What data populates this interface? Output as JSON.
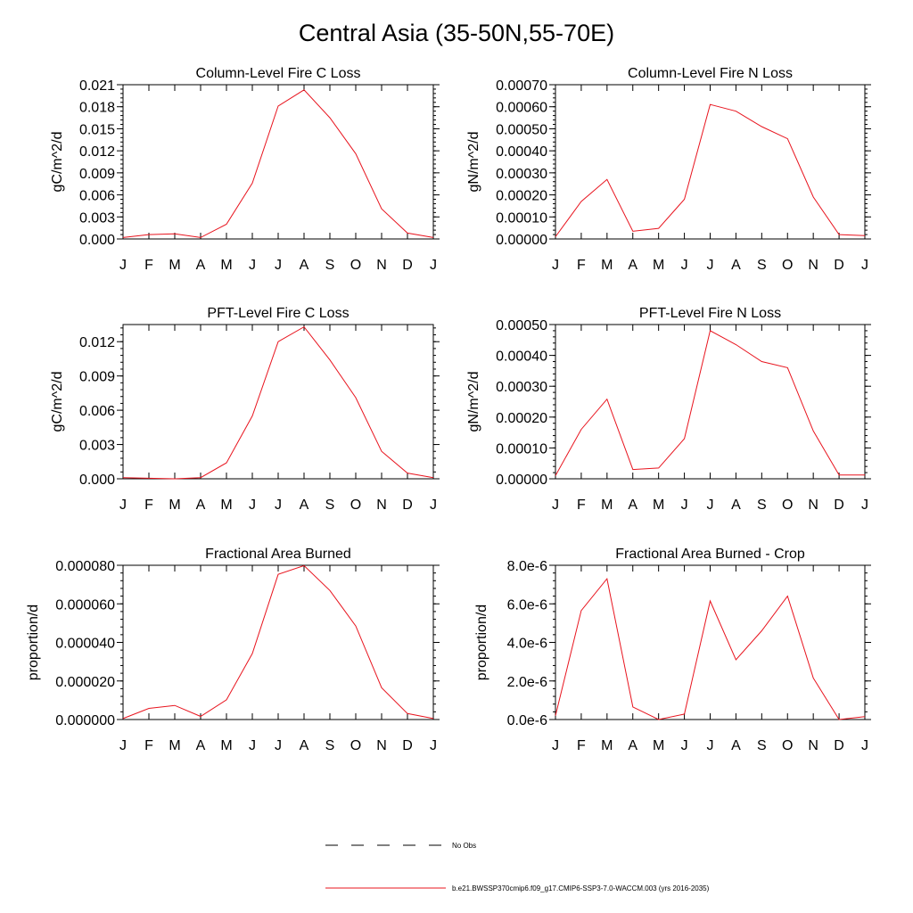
{
  "page_title": "Central Asia (35-50N,55-70E)",
  "legend": {
    "obs_label": "No Obs",
    "model_label": "b.e21.BWSSP370cmip6.f09_g17.CMIP6-SSP3-7.0-WACCM.003 (yrs 2016-2035)",
    "model_color": "#e8141e",
    "obs_color": "#000000"
  },
  "chart_data": [
    {
      "type": "line",
      "title": "Column-Level Fire C Loss",
      "ylabel": "gC/m^2/d",
      "categories": [
        "J",
        "F",
        "M",
        "A",
        "M",
        "J",
        "J",
        "A",
        "S",
        "O",
        "N",
        "D",
        "J"
      ],
      "ylim": [
        0,
        0.021
      ],
      "yticks": [
        0,
        0.003,
        0.006,
        0.009,
        0.012,
        0.015,
        0.018,
        0.021
      ],
      "ytick_labels": [
        "0.000",
        "0.003",
        "0.006",
        "0.009",
        "0.012",
        "0.015",
        "0.018",
        "0.021"
      ],
      "series": [
        {
          "name": "model",
          "color": "#e8141e",
          "values": [
            0.0002,
            0.0006,
            0.0007,
            0.0002,
            0.002,
            0.0076,
            0.0181,
            0.0203,
            0.0165,
            0.0116,
            0.0041,
            0.0008,
            0.0002
          ]
        }
      ]
    },
    {
      "type": "line",
      "title": "Column-Level Fire N Loss",
      "ylabel": "gN/m^2/d",
      "categories": [
        "J",
        "F",
        "M",
        "A",
        "M",
        "J",
        "J",
        "A",
        "S",
        "O",
        "N",
        "D",
        "J"
      ],
      "ylim": [
        0,
        0.0007
      ],
      "yticks": [
        0,
        0.0001,
        0.0002,
        0.0003,
        0.0004,
        0.0005,
        0.0006,
        0.0007
      ],
      "ytick_labels": [
        "0.00000",
        "0.00010",
        "0.00020",
        "0.00030",
        "0.00040",
        "0.00050",
        "0.00060",
        "0.00070"
      ],
      "series": [
        {
          "name": "model",
          "color": "#e8141e",
          "values": [
            1e-05,
            0.00017,
            0.00027,
            3.5e-05,
            4.8e-05,
            0.00018,
            0.00061,
            0.00058,
            0.00051,
            0.000455,
            0.00019,
            2e-05,
            1.5e-05
          ]
        }
      ]
    },
    {
      "type": "line",
      "title": "PFT-Level Fire C Loss",
      "ylabel": "gC/m^2/d",
      "categories": [
        "J",
        "F",
        "M",
        "A",
        "M",
        "J",
        "J",
        "A",
        "S",
        "O",
        "N",
        "D",
        "J"
      ],
      "ylim": [
        0,
        0.0135
      ],
      "yticks": [
        0,
        0.003,
        0.006,
        0.009,
        0.012
      ],
      "ytick_labels": [
        "0.000",
        "0.003",
        "0.006",
        "0.009",
        "0.012"
      ],
      "series": [
        {
          "name": "model",
          "color": "#e8141e",
          "values": [
            0.0001,
            5e-05,
            0.0,
            0.0001,
            0.0014,
            0.0055,
            0.012,
            0.0133,
            0.0104,
            0.0071,
            0.0024,
            0.0005,
            0.0001
          ]
        }
      ]
    },
    {
      "type": "line",
      "title": "PFT-Level Fire N Loss",
      "ylabel": "gN/m^2/d",
      "categories": [
        "J",
        "F",
        "M",
        "A",
        "M",
        "J",
        "J",
        "A",
        "S",
        "O",
        "N",
        "D",
        "J"
      ],
      "ylim": [
        0,
        0.0005
      ],
      "yticks": [
        0,
        0.0001,
        0.0002,
        0.0003,
        0.0004,
        0.0005
      ],
      "ytick_labels": [
        "0.00000",
        "0.00010",
        "0.00020",
        "0.00030",
        "0.00040",
        "0.00050"
      ],
      "series": [
        {
          "name": "model",
          "color": "#e8141e",
          "values": [
            1e-05,
            0.00016,
            0.000258,
            3e-05,
            3.5e-05,
            0.00013,
            0.00048,
            0.000435,
            0.00038,
            0.00036,
            0.000155,
            1.2e-05,
            1.2e-05
          ]
        }
      ]
    },
    {
      "type": "line",
      "title": "Fractional Area Burned",
      "ylabel": "proportion/d",
      "categories": [
        "J",
        "F",
        "M",
        "A",
        "M",
        "J",
        "J",
        "A",
        "S",
        "O",
        "N",
        "D",
        "J"
      ],
      "ylim": [
        0,
        8e-05
      ],
      "yticks": [
        0,
        2e-05,
        4e-05,
        6e-05,
        8e-05
      ],
      "ytick_labels": [
        "0.000000",
        "0.000020",
        "0.000040",
        "0.000060",
        "0.000080"
      ],
      "series": [
        {
          "name": "model",
          "color": "#e8141e",
          "values": [
            5e-07,
            5.8e-06,
            7.3e-06,
            1.6e-06,
            1.02e-05,
            3.42e-05,
            7.53e-05,
            7.98e-05,
            6.69e-05,
            4.85e-05,
            1.65e-05,
            3.1e-06,
            5e-07
          ]
        }
      ]
    },
    {
      "type": "line",
      "title": "Fractional Area Burned - Crop",
      "ylabel": "proportion/d",
      "categories": [
        "J",
        "F",
        "M",
        "A",
        "M",
        "J",
        "J",
        "A",
        "S",
        "O",
        "N",
        "D",
        "J"
      ],
      "ylim": [
        0,
        8e-06
      ],
      "yticks": [
        0,
        2e-06,
        4e-06,
        6e-06,
        8e-06
      ],
      "ytick_labels": [
        "0.0e-6",
        "2.0e-6",
        "4.0e-6",
        "6.0e-6",
        "8.0e-6"
      ],
      "series": [
        {
          "name": "model",
          "color": "#e8141e",
          "values": [
            2e-07,
            5.65e-06,
            7.3e-06,
            6.5e-07,
            0.0,
            2.8e-07,
            6.15e-06,
            3.1e-06,
            4.6e-06,
            6.4e-06,
            2.15e-06,
            0.0,
            1.5e-07
          ]
        }
      ]
    }
  ]
}
